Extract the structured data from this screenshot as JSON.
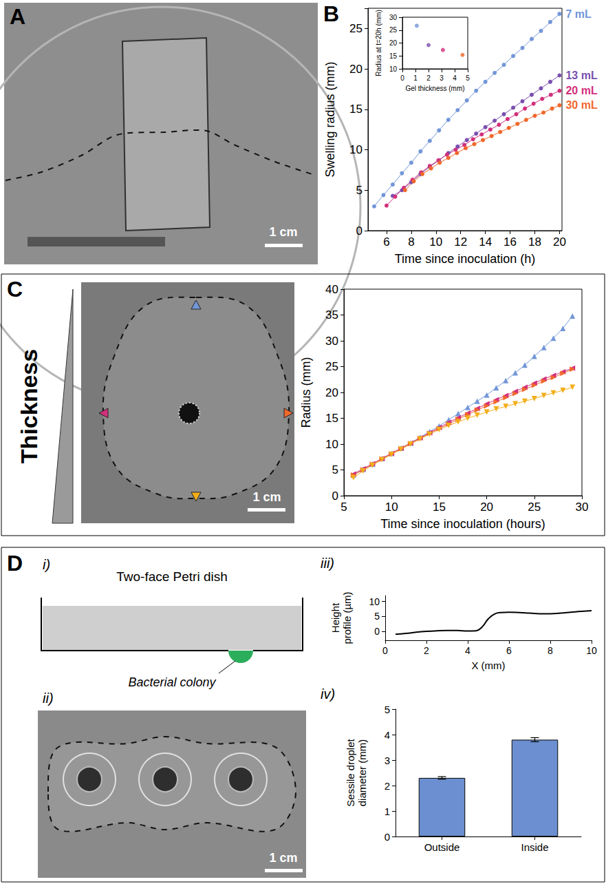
{
  "figure": {
    "A": {
      "label": "A",
      "scale_bar": "1 cm"
    },
    "B": {
      "label": "B"
    },
    "C": {
      "label": "C",
      "side_text": "Thickness",
      "scale_bar": "1 cm"
    },
    "D": {
      "label": "D",
      "parts": [
        "i)",
        "ii)",
        "iii)",
        "iv)"
      ],
      "schematic_title": "Two-face Petri dish",
      "schematic_callout": "Bacterial colony",
      "scale_bar": "1 cm"
    }
  },
  "chart_data": [
    {
      "type": "line",
      "x_label": "Time since inoculation (h)",
      "y_label": "Swelling radius (mm)",
      "xlim": [
        4.5,
        20.2
      ],
      "xticks": [
        6,
        8,
        10,
        12,
        14,
        16,
        18,
        20
      ],
      "ylim": [
        0,
        27.5
      ],
      "yticks": [
        0,
        5,
        10,
        15,
        20,
        25
      ],
      "grid": false,
      "marker": "circle",
      "series": [
        {
          "name": "7 mL",
          "color": "#7396d8",
          "x": [
            5,
            5.75,
            6.5,
            7.25,
            8,
            8.75,
            9.5,
            10.25,
            11,
            11.75,
            12.5,
            13.25,
            14,
            14.75,
            15.5,
            16.25,
            17,
            17.75,
            18.5,
            19.25,
            20
          ],
          "values": [
            3.0,
            4.4,
            5.7,
            7.1,
            8.4,
            9.8,
            11.1,
            12.4,
            13.7,
            14.9,
            16.1,
            17.3,
            18.4,
            19.5,
            20.5,
            21.6,
            22.6,
            23.7,
            24.7,
            25.8,
            26.8
          ]
        },
        {
          "name": "13 mL",
          "color": "#7a4fae",
          "x": [
            6.5,
            7.25,
            8,
            8.75,
            9.5,
            10.25,
            11,
            11.75,
            12.5,
            13.25,
            14,
            14.75,
            15.5,
            16.25,
            17,
            17.75,
            18.5,
            19.25,
            20
          ],
          "values": [
            4.3,
            5.0,
            6.0,
            7.0,
            7.9,
            8.7,
            9.6,
            10.4,
            11.2,
            12.0,
            12.8,
            13.6,
            14.4,
            15.2,
            16.0,
            16.8,
            17.6,
            18.4,
            19.2
          ]
        },
        {
          "name": "20 mL",
          "color": "#d2307c",
          "x": [
            6,
            6.7,
            7.4,
            8.1,
            8.8,
            9.5,
            10.2,
            10.9,
            11.6,
            12.3,
            13,
            13.7,
            14.4,
            15.1,
            15.8,
            16.5,
            17.2,
            17.9,
            18.6,
            19.3,
            20
          ],
          "values": [
            3.1,
            4.2,
            5.3,
            6.3,
            7.2,
            8.0,
            8.7,
            9.4,
            10.0,
            10.6,
            11.3,
            11.9,
            12.5,
            13.1,
            13.8,
            14.4,
            15.1,
            15.7,
            16.3,
            16.8,
            17.3
          ]
        },
        {
          "name": "30 mL",
          "color": "#f0682c",
          "x": [
            7.5,
            8.2,
            8.9,
            9.6,
            10.3,
            11,
            11.7,
            12.4,
            13.1,
            13.8,
            14.5,
            15.2,
            15.9,
            16.6,
            17.3,
            18,
            18.7,
            19.4,
            20
          ],
          "values": [
            5.0,
            6.1,
            7.0,
            7.7,
            8.4,
            9.0,
            9.6,
            10.2,
            10.7,
            11.2,
            11.7,
            12.2,
            12.7,
            13.2,
            13.7,
            14.2,
            14.6,
            15.1,
            15.5
          ]
        }
      ]
    },
    {
      "type": "scatter",
      "x_label": "Gel thickness (mm)",
      "y_label": "Radius at t=20h (mm)",
      "x": [
        1.1,
        2.0,
        3.1,
        4.6
      ],
      "values": [
        26.7,
        19.2,
        17.3,
        15.4
      ],
      "colors": [
        "#7396d8",
        "#7a4fae",
        "#d2307c",
        "#f0682c"
      ],
      "marker": "circle",
      "xlim": [
        0,
        5
      ],
      "xticks": [
        0,
        1,
        2,
        3,
        4,
        5
      ],
      "ylim": [
        10,
        30
      ],
      "yticks": [
        10,
        15,
        20,
        25,
        30
      ],
      "grid": false
    },
    {
      "type": "line",
      "x_label": "Time since inoculation (hours)",
      "y_label": "Radius (mm)",
      "xlim": [
        5,
        30
      ],
      "xticks": [
        5,
        10,
        15,
        20,
        25,
        30
      ],
      "ylim": [
        0,
        40
      ],
      "yticks": [
        0,
        5,
        10,
        15,
        20,
        25,
        30,
        35,
        40
      ],
      "grid": false,
      "x": [
        6,
        7,
        8,
        9,
        10,
        11,
        12,
        13,
        14,
        15,
        16,
        17,
        18,
        19,
        20,
        21,
        22,
        23,
        24,
        25,
        26,
        27,
        28,
        29
      ],
      "series": [
        {
          "color": "#7396d8",
          "marker": "triangle-up",
          "values": [
            4.0,
            5.1,
            6.1,
            7.2,
            8.2,
            9.2,
            10.2,
            11.3,
            12.4,
            13.5,
            14.7,
            15.9,
            17.1,
            18.3,
            19.5,
            20.9,
            22.3,
            23.8,
            25.3,
            27.0,
            28.7,
            30.5,
            32.4,
            34.8
          ]
        },
        {
          "color": "#d2307c",
          "marker": "triangle-left",
          "values": [
            4.2,
            5.2,
            6.2,
            7.2,
            8.2,
            9.2,
            10.2,
            11.2,
            12.2,
            13.2,
            14.2,
            15.1,
            16.0,
            16.9,
            17.8,
            18.6,
            19.4,
            20.2,
            21.0,
            21.8,
            22.6,
            23.3,
            24.0,
            24.7
          ]
        },
        {
          "color": "#f0682c",
          "marker": "triangle-right",
          "values": [
            4.0,
            5.0,
            6.1,
            7.1,
            8.1,
            9.1,
            10.1,
            11.1,
            12.1,
            13.0,
            13.9,
            14.8,
            15.7,
            16.6,
            17.4,
            18.2,
            19.0,
            19.8,
            20.6,
            21.4,
            22.2,
            22.9,
            23.7,
            24.5
          ]
        },
        {
          "color": "#f3ae1b",
          "marker": "triangle-down",
          "values": [
            3.5,
            4.8,
            5.9,
            7.0,
            8.0,
            9.0,
            10.0,
            11.0,
            11.9,
            12.8,
            13.6,
            14.3,
            15.0,
            15.6,
            16.2,
            16.8,
            17.3,
            17.8,
            18.3,
            18.8,
            19.4,
            19.9,
            20.4,
            21.0
          ]
        }
      ]
    },
    {
      "type": "line",
      "x_label": "X (mm)",
      "y_label": "Height profile (µm)",
      "color": "#000000",
      "marker": "none",
      "x": [
        0.5,
        1,
        1.5,
        2,
        2.5,
        3,
        3.5,
        4,
        4.4,
        4.7,
        5,
        5.3,
        5.6,
        6,
        6.5,
        7,
        7.5,
        8,
        8.5,
        9,
        9.5,
        10
      ],
      "values": [
        -1.0,
        -0.7,
        -0.3,
        0.0,
        0.2,
        0.3,
        0.3,
        0.1,
        0.2,
        1.5,
        4.2,
        5.8,
        6.3,
        6.4,
        6.3,
        6.1,
        5.9,
        5.9,
        6.1,
        6.4,
        6.7,
        6.9
      ],
      "xlim": [
        0,
        10
      ],
      "xticks": [
        0,
        2,
        4,
        6,
        8,
        10
      ],
      "ylim": [
        -3,
        12
      ],
      "yticks": [
        0,
        5,
        10
      ],
      "grid": false
    },
    {
      "type": "bar",
      "y_label": "Sessile droplet diameter (mm)",
      "categories": [
        "Outside",
        "Inside"
      ],
      "values": [
        2.3,
        3.8
      ],
      "errors": [
        0.05,
        0.08
      ],
      "color": "#6b8fd0",
      "ylim": [
        0,
        5
      ],
      "yticks": [
        0,
        1,
        2,
        3,
        4,
        5
      ],
      "grid": false
    }
  ]
}
